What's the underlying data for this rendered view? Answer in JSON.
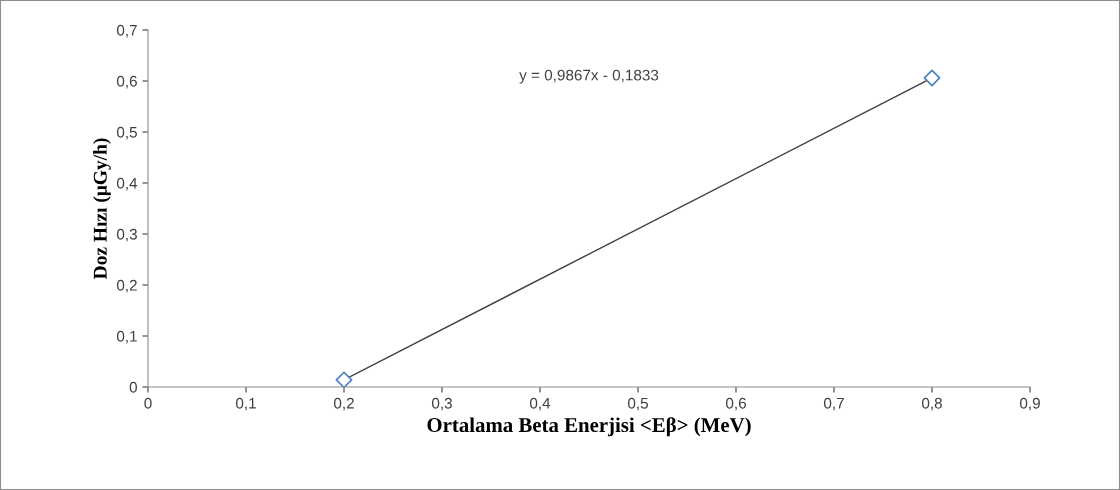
{
  "chart_data": {
    "type": "scatter",
    "xlabel": "Ortalama Beta Enerjisi <Eβ> (MeV)",
    "ylabel": "Doz Hızı (μGy/h)",
    "series": [
      {
        "color": "#4f81bd",
        "marker": "diamond",
        "values": [
          0.014,
          0.606
        ]
      },
      {
        "type": "line",
        "color": "#404040",
        "marker": "none",
        "values": [
          0.014,
          0.606
        ]
      }
    ],
    "x": [
      0.2,
      0.8
    ],
    "annotations": [
      "y = 0,9867x - 0,1833"
    ],
    "grid": false,
    "legend": false,
    "xlim": [
      0,
      0.9
    ],
    "ylim": [
      0,
      0.7
    ],
    "xticks": [
      0,
      {
        "value": 0.1,
        "label": "0,1"
      },
      {
        "value": 0.2,
        "label": "0,2"
      },
      {
        "value": 0.3,
        "label": "0,3"
      },
      {
        "value": 0.4,
        "label": "0,4"
      },
      {
        "value": 0.5,
        "label": "0,5"
      },
      {
        "value": 0.6,
        "label": "0,6"
      },
      {
        "value": 0.7,
        "label": "0,7"
      },
      {
        "value": 0.8,
        "label": "0,8"
      },
      {
        "value": 0.9,
        "label": "0,9"
      }
    ],
    "yticks": [
      0,
      {
        "value": 0.1,
        "label": "0,1"
      },
      {
        "value": 0.2,
        "label": "0,2"
      },
      {
        "value": 0.3,
        "label": "0,3"
      },
      {
        "value": 0.4,
        "label": "0,4"
      },
      {
        "value": 0.5,
        "label": "0,5"
      },
      {
        "value": 0.6,
        "label": "0,6"
      },
      {
        "value": 0.7,
        "label": "0,7"
      }
    ]
  }
}
